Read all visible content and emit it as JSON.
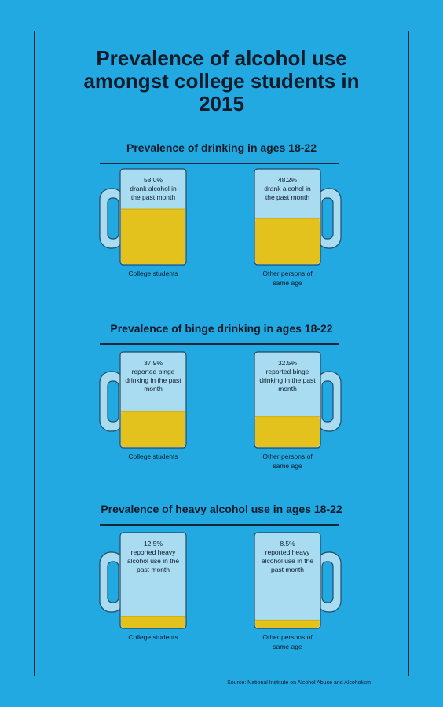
{
  "title": {
    "line1": "Prevalence of alcohol use",
    "line2": "amongst college students in",
    "line3": "2015"
  },
  "source": "Source: National Institute on Alcohol Abuse and Alcoholism",
  "colors": {
    "background": "#22a9e1",
    "glass": "#a9dcf1",
    "liquid": "#e4c21d",
    "liquid_top": "#d4b010",
    "outline": "#1f4a66"
  },
  "chart_data": [
    {
      "type": "bar",
      "title": "Prevalence of drinking in ages 18-22",
      "unit": "%",
      "categories": [
        "College students",
        "Other persons of same age"
      ],
      "values": [
        58.0,
        48.2
      ],
      "value_labels": [
        "58.0%",
        "48.2%"
      ],
      "descriptions": [
        [
          "drank alcohol in",
          "the past month"
        ],
        [
          "drank alcohol in",
          "the past month"
        ]
      ],
      "category_lines": [
        [
          "College students"
        ],
        [
          "Other persons of",
          "same age"
        ]
      ]
    },
    {
      "type": "bar",
      "title": "Prevalence of binge drinking in ages 18-22",
      "unit": "%",
      "categories": [
        "College students",
        "Other persons of same age"
      ],
      "values": [
        37.9,
        32.5
      ],
      "value_labels": [
        "37.9%",
        "32.5%"
      ],
      "descriptions": [
        [
          "reported binge",
          "drinking in the past",
          "month"
        ],
        [
          "reported binge",
          "drinking in the past",
          "month"
        ]
      ],
      "category_lines": [
        [
          "College students"
        ],
        [
          "Other persons of",
          "same age"
        ]
      ]
    },
    {
      "type": "bar",
      "title": "Prevalence of heavy alcohol use in ages 18-22",
      "unit": "%",
      "categories": [
        "College students",
        "Other persons of same age"
      ],
      "values": [
        12.5,
        8.5
      ],
      "value_labels": [
        "12.5%",
        "8.5%"
      ],
      "descriptions": [
        [
          "reported heavy",
          "alcohol use in the",
          "past month"
        ],
        [
          "reported heavy",
          "alcohol use in the",
          "past month"
        ]
      ],
      "category_lines": [
        [
          "College students"
        ],
        [
          "Other persons of",
          "same age"
        ]
      ]
    }
  ]
}
